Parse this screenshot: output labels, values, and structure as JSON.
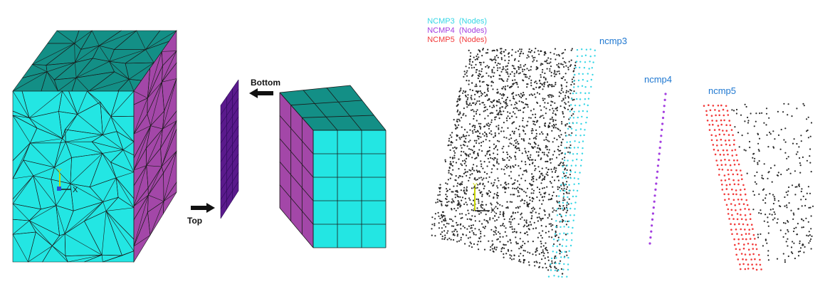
{
  "left_panel": {
    "labels": {
      "bottom": "Bottom",
      "top": "Top"
    },
    "triad": {
      "y_label": "Y",
      "x_label": "X"
    },
    "colors": {
      "face_front": "#23e6e3",
      "face_top": "#138f86",
      "face_side": "#a347a8",
      "plate": "#5a1a8c",
      "mesh_line": "#1a1a1a"
    }
  },
  "right_panel": {
    "legend": [
      {
        "name": "NCMP3",
        "tag": "(Nodes)",
        "color": "#35d6e6"
      },
      {
        "name": "NCMP4",
        "tag": "(Nodes)",
        "color": "#a33ee0"
      },
      {
        "name": "NCMP5",
        "tag": "(Nodes)",
        "color": "#f23a3a"
      }
    ],
    "cloud_labels": {
      "ncmp3": "ncmp3",
      "ncmp4": "ncmp4",
      "ncmp5": "ncmp5"
    },
    "triad": {
      "y_label": "Y",
      "x_label": "X"
    },
    "colors": {
      "node": "#2a2a2a"
    }
  }
}
